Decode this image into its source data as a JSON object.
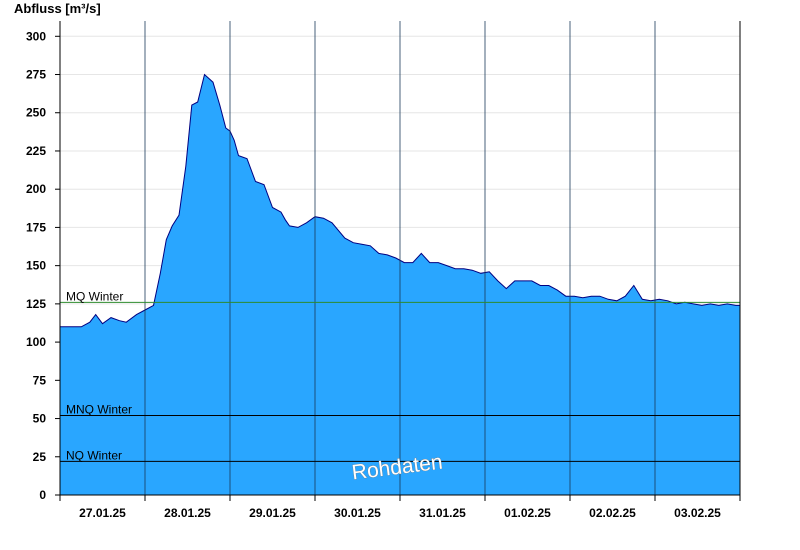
{
  "chart_data": {
    "type": "area",
    "ylabel": "Abfluss [m³/s]",
    "ylim": [
      0,
      310
    ],
    "yticks": [
      0,
      25,
      50,
      75,
      100,
      125,
      150,
      175,
      200,
      225,
      250,
      275,
      300
    ],
    "xticks": [
      "27.01.25",
      "28.01.25",
      "29.01.25",
      "30.01.25",
      "31.01.25",
      "01.02.25",
      "02.02.25",
      "03.02.25"
    ],
    "x_range_days": [
      0,
      8
    ],
    "reference_lines": [
      {
        "label": "MQ Winter",
        "value": 126,
        "color": "#2e8b2e"
      },
      {
        "label": "MNQ Winter",
        "value": 52,
        "color": "#000000"
      },
      {
        "label": "NQ Winter",
        "value": 22,
        "color": "#000000"
      }
    ],
    "watermark": "Rohdaten",
    "fill_color": "#29a6ff",
    "line_color": "#000080",
    "series": [
      {
        "x": [
          0,
          0.12,
          0.25,
          0.35,
          0.42,
          0.5,
          0.6,
          0.7,
          0.78,
          0.9,
          1.0,
          1.1,
          1.18,
          1.25,
          1.32,
          1.4,
          1.48,
          1.55,
          1.62,
          1.7,
          1.8,
          1.88,
          1.95,
          2.0,
          2.05,
          2.1,
          2.2,
          2.3,
          2.4,
          2.5,
          2.6,
          2.65,
          2.7,
          2.8,
          2.9,
          3.0,
          3.1,
          3.2,
          3.35,
          3.45,
          3.55,
          3.65,
          3.75,
          3.85,
          3.95,
          4.05,
          4.15,
          4.25,
          4.35,
          4.45,
          4.55,
          4.65,
          4.75,
          4.85,
          4.95,
          5.05,
          5.15,
          5.25,
          5.35,
          5.45,
          5.55,
          5.65,
          5.75,
          5.85,
          5.95,
          6.05,
          6.15,
          6.25,
          6.35,
          6.45,
          6.55,
          6.65,
          6.75,
          6.85,
          6.95,
          7.05,
          7.15,
          7.25,
          7.35,
          7.45,
          7.55,
          7.65,
          7.75,
          7.85,
          7.95,
          8.0
        ],
        "values": [
          110,
          110,
          110,
          113,
          118,
          112,
          116,
          114,
          113,
          118,
          121,
          124,
          145,
          167,
          176,
          183,
          215,
          255,
          257,
          275,
          270,
          255,
          240,
          238,
          232,
          222,
          220,
          205,
          203,
          188,
          185,
          180,
          176,
          175,
          178,
          182,
          181,
          178,
          168,
          165,
          164,
          163,
          158,
          157,
          155,
          152,
          152,
          158,
          152,
          152,
          150,
          148,
          148,
          147,
          145,
          146,
          140,
          135,
          140,
          140,
          140,
          137,
          137,
          134,
          130,
          130,
          129,
          130,
          130,
          128,
          127,
          130,
          137,
          128,
          127,
          128,
          127,
          125,
          126,
          125,
          124,
          125,
          124,
          125,
          124,
          124
        ]
      }
    ]
  }
}
